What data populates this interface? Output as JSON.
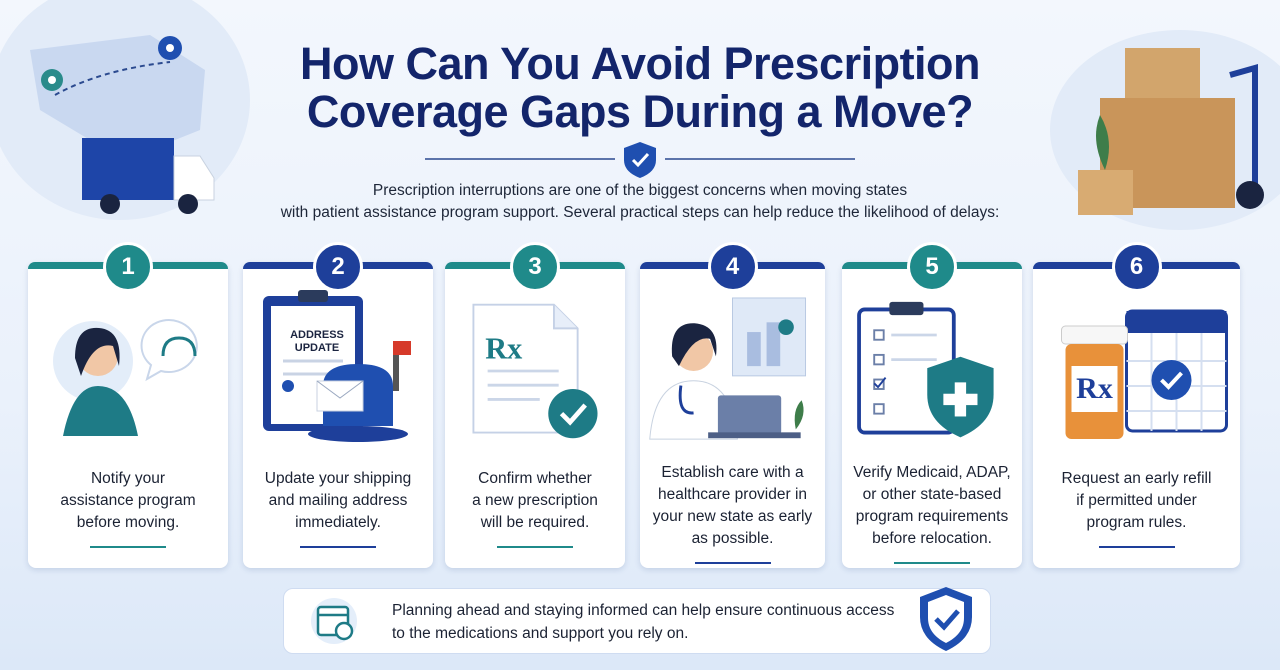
{
  "header": {
    "title_lines": [
      "How Can You Avoid Prescription",
      "Coverage Gaps During a Move?"
    ],
    "intro_lines": [
      "Prescription interruptions are one of the biggest concerns when moving states",
      "with patient assistance program support. Several practical steps can help reduce the likelihood of delays:"
    ]
  },
  "steps": [
    {
      "number": "1",
      "lines": [
        "Notify your",
        "assistance program",
        "before moving."
      ]
    },
    {
      "number": "2",
      "illustration_labels": [
        "ADDRESS",
        "UPDATE"
      ],
      "lines": [
        "Update your shipping",
        "and mailing address",
        "immediately."
      ]
    },
    {
      "number": "3",
      "illustration_labels": [
        "Rx"
      ],
      "lines": [
        "Confirm whether",
        "a new prescription",
        "will be required."
      ]
    },
    {
      "number": "4",
      "lines": [
        "Establish care with a",
        "healthcare provider in",
        "your new state as early",
        "as possible."
      ]
    },
    {
      "number": "5",
      "lines": [
        "Verify Medicaid, ADAP,",
        "or other state-based",
        "program requirements",
        "before relocation."
      ]
    },
    {
      "number": "6",
      "illustration_labels": [
        "Rx"
      ],
      "lines": [
        "Request an early refill",
        "if permitted under",
        "program rules."
      ]
    }
  ],
  "footer": {
    "lines": [
      "Planning ahead and staying informed can help ensure continuous access",
      "to the medications and support you rely on."
    ]
  }
}
